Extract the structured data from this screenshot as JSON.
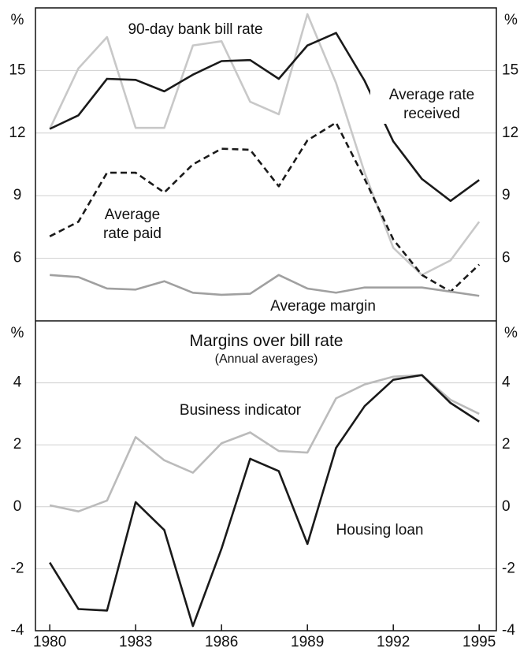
{
  "chart_data": [
    {
      "type": "line",
      "unit": "%",
      "x": [
        1980,
        1981,
        1982,
        1983,
        1984,
        1985,
        1986,
        1987,
        1988,
        1989,
        1990,
        1991,
        1992,
        1993,
        1994,
        1995
      ],
      "xlim": [
        1979.5,
        1995.6
      ],
      "ylim": [
        3,
        18
      ],
      "yticks": [
        6,
        9,
        12,
        15
      ],
      "grid": true,
      "series": [
        {
          "name": "90-day bank bill rate",
          "color": "#c8c8c8",
          "style": "solid",
          "values": [
            12.2,
            15.1,
            16.6,
            12.25,
            12.25,
            16.2,
            16.4,
            13.5,
            12.9,
            17.7,
            14.4,
            10.1,
            6.5,
            5.2,
            5.9,
            7.75
          ]
        },
        {
          "name": "Average rate received",
          "color": "#1a1a1a",
          "style": "solid",
          "values": [
            12.2,
            12.85,
            14.6,
            14.55,
            14.0,
            14.8,
            15.45,
            15.5,
            14.6,
            16.2,
            16.8,
            14.5,
            11.6,
            9.8,
            8.75,
            9.75
          ]
        },
        {
          "name": "Average rate paid",
          "color": "#1a1a1a",
          "style": "dashed",
          "values": [
            7.05,
            7.75,
            10.1,
            10.1,
            9.15,
            10.5,
            11.25,
            11.2,
            9.45,
            11.65,
            12.5,
            9.8,
            6.9,
            5.2,
            4.4,
            5.7
          ]
        },
        {
          "name": "Average margin",
          "color": "#a0a0a0",
          "style": "solid",
          "values": [
            5.2,
            5.1,
            4.55,
            4.5,
            4.9,
            4.35,
            4.25,
            4.3,
            5.2,
            4.55,
            4.35,
            4.6,
            4.6,
            4.6,
            4.4,
            4.2
          ]
        }
      ]
    },
    {
      "type": "line",
      "unit": "%",
      "title": "Margins over bill rate",
      "subtitle": "(Annual averages)",
      "x": [
        1980,
        1981,
        1982,
        1983,
        1984,
        1985,
        1986,
        1987,
        1988,
        1989,
        1990,
        1991,
        1992,
        1993,
        1994,
        1995
      ],
      "xlim": [
        1979.5,
        1995.6
      ],
      "xticks": [
        1980,
        1983,
        1986,
        1989,
        1992,
        1995
      ],
      "ylim": [
        -4,
        6
      ],
      "yticks": [
        -4,
        -2,
        0,
        2,
        4
      ],
      "grid": true,
      "series": [
        {
          "name": "Business indicator",
          "color": "#bbbbbb",
          "style": "solid",
          "values": [
            0.05,
            -0.15,
            0.2,
            2.25,
            1.5,
            1.1,
            2.05,
            2.4,
            1.8,
            1.75,
            3.5,
            3.95,
            4.2,
            4.25,
            3.45,
            3.0
          ]
        },
        {
          "name": "Housing loan",
          "color": "#1a1a1a",
          "style": "solid",
          "values": [
            -1.8,
            -3.3,
            -3.35,
            0.15,
            -0.75,
            -3.85,
            -1.35,
            1.55,
            1.15,
            -1.2,
            1.9,
            3.25,
            4.1,
            4.25,
            3.35,
            2.75
          ]
        }
      ]
    }
  ]
}
